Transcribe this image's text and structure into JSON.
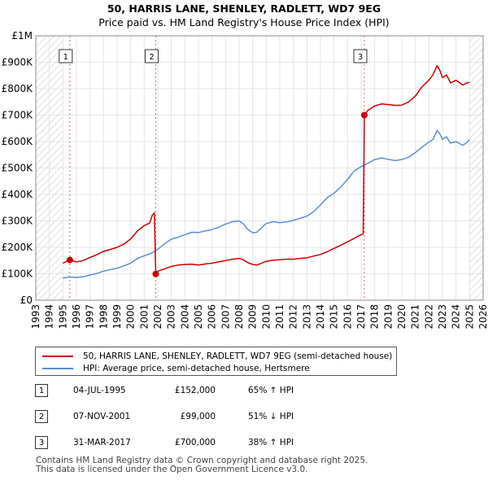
{
  "chart_data": {
    "type": "line",
    "title": "50, HARRIS LANE, SHENLEY, RADLETT, WD7 9EG",
    "subtitle": "Price paid vs. HM Land Registry's House Price Index (HPI)",
    "xlim": [
      1993,
      2026
    ],
    "ylim": [
      0,
      1000000
    ],
    "x_ticks": [
      1993,
      1994,
      1995,
      1996,
      1997,
      1998,
      1999,
      2000,
      2001,
      2002,
      2003,
      2004,
      2005,
      2006,
      2007,
      2008,
      2009,
      2010,
      2011,
      2012,
      2013,
      2014,
      2015,
      2016,
      2017,
      2018,
      2019,
      2020,
      2021,
      2022,
      2023,
      2024,
      2025,
      2026
    ],
    "y_ticks": [
      {
        "value": 0,
        "label": "£0"
      },
      {
        "value": 100000,
        "label": "£100K"
      },
      {
        "value": 200000,
        "label": "£200K"
      },
      {
        "value": 300000,
        "label": "£300K"
      },
      {
        "value": 400000,
        "label": "£400K"
      },
      {
        "value": 500000,
        "label": "£500K"
      },
      {
        "value": 600000,
        "label": "£600K"
      },
      {
        "value": 700000,
        "label": "£700K"
      },
      {
        "value": 800000,
        "label": "£800K"
      },
      {
        "value": 900000,
        "label": "£900K"
      },
      {
        "value": 1000000,
        "label": "£1M"
      }
    ],
    "hatched_ranges": [
      [
        1993,
        1995
      ],
      [
        2025,
        2026
      ]
    ],
    "series": [
      {
        "name": "50, HARRIS LANE, SHENLEY, RADLETT, WD7 9EG (semi-detached house)",
        "color": "#cc0000",
        "points": [
          [
            1995.0,
            140000
          ],
          [
            1995.51,
            152000
          ],
          [
            1996.0,
            145000
          ],
          [
            1996.5,
            150000
          ],
          [
            1997.0,
            162000
          ],
          [
            1997.5,
            172000
          ],
          [
            1998.0,
            185000
          ],
          [
            1998.5,
            192000
          ],
          [
            1999.0,
            200000
          ],
          [
            1999.5,
            212000
          ],
          [
            2000.0,
            232000
          ],
          [
            2000.5,
            262000
          ],
          [
            2001.0,
            282000
          ],
          [
            2001.4,
            292000
          ],
          [
            2001.6,
            322000
          ],
          [
            2001.75,
            330000
          ],
          [
            2001.85,
            99000
          ],
          [
            2002.0,
            110000
          ],
          [
            2002.5,
            118000
          ],
          [
            2003.0,
            128000
          ],
          [
            2003.5,
            133000
          ],
          [
            2004.0,
            135000
          ],
          [
            2004.5,
            136000
          ],
          [
            2005.0,
            133000
          ],
          [
            2005.5,
            137000
          ],
          [
            2006.0,
            140000
          ],
          [
            2006.5,
            145000
          ],
          [
            2007.0,
            150000
          ],
          [
            2007.5,
            155000
          ],
          [
            2008.0,
            158000
          ],
          [
            2008.3,
            153000
          ],
          [
            2008.6,
            143000
          ],
          [
            2009.0,
            135000
          ],
          [
            2009.3,
            133000
          ],
          [
            2009.7,
            141000
          ],
          [
            2010.0,
            147000
          ],
          [
            2010.5,
            151000
          ],
          [
            2011.0,
            153000
          ],
          [
            2011.5,
            155000
          ],
          [
            2012.0,
            155000
          ],
          [
            2012.5,
            158000
          ],
          [
            2013.0,
            160000
          ],
          [
            2013.5,
            167000
          ],
          [
            2014.0,
            173000
          ],
          [
            2014.5,
            183000
          ],
          [
            2015.0,
            196000
          ],
          [
            2015.5,
            208000
          ],
          [
            2016.0,
            221000
          ],
          [
            2016.5,
            234000
          ],
          [
            2016.9,
            246000
          ],
          [
            2017.15,
            250000
          ],
          [
            2017.24,
            700000
          ],
          [
            2017.5,
            718000
          ],
          [
            2018.0,
            735000
          ],
          [
            2018.5,
            742000
          ],
          [
            2019.0,
            740000
          ],
          [
            2019.5,
            737000
          ],
          [
            2020.0,
            738000
          ],
          [
            2020.5,
            750000
          ],
          [
            2021.0,
            772000
          ],
          [
            2021.5,
            808000
          ],
          [
            2022.0,
            832000
          ],
          [
            2022.3,
            852000
          ],
          [
            2022.6,
            887000
          ],
          [
            2022.8,
            870000
          ],
          [
            2023.0,
            842000
          ],
          [
            2023.3,
            852000
          ],
          [
            2023.6,
            822000
          ],
          [
            2024.0,
            832000
          ],
          [
            2024.5,
            814000
          ],
          [
            2024.8,
            822000
          ],
          [
            2025.0,
            824000
          ]
        ]
      },
      {
        "name": "HPI: Average price, semi-detached house, Hertsmere",
        "color": "#5a8fd0",
        "points": [
          [
            1995.0,
            84000
          ],
          [
            1995.5,
            88000
          ],
          [
            1996.0,
            86000
          ],
          [
            1996.5,
            89000
          ],
          [
            1997.0,
            95000
          ],
          [
            1997.5,
            101000
          ],
          [
            1998.0,
            110000
          ],
          [
            1998.5,
            116000
          ],
          [
            1999.0,
            121000
          ],
          [
            1999.5,
            130000
          ],
          [
            2000.0,
            140000
          ],
          [
            2000.5,
            158000
          ],
          [
            2001.0,
            168000
          ],
          [
            2001.5,
            177000
          ],
          [
            2002.0,
            193000
          ],
          [
            2002.5,
            213000
          ],
          [
            2003.0,
            231000
          ],
          [
            2003.5,
            238000
          ],
          [
            2004.0,
            248000
          ],
          [
            2004.5,
            257000
          ],
          [
            2005.0,
            256000
          ],
          [
            2005.5,
            262000
          ],
          [
            2006.0,
            267000
          ],
          [
            2006.5,
            276000
          ],
          [
            2007.0,
            288000
          ],
          [
            2007.5,
            297000
          ],
          [
            2008.0,
            300000
          ],
          [
            2008.3,
            290000
          ],
          [
            2008.6,
            270000
          ],
          [
            2009.0,
            255000
          ],
          [
            2009.3,
            257000
          ],
          [
            2009.7,
            276000
          ],
          [
            2010.0,
            290000
          ],
          [
            2010.5,
            297000
          ],
          [
            2011.0,
            293000
          ],
          [
            2011.5,
            296000
          ],
          [
            2012.0,
            302000
          ],
          [
            2012.5,
            310000
          ],
          [
            2013.0,
            318000
          ],
          [
            2013.5,
            335000
          ],
          [
            2014.0,
            360000
          ],
          [
            2014.5,
            388000
          ],
          [
            2015.0,
            405000
          ],
          [
            2015.5,
            428000
          ],
          [
            2016.0,
            457000
          ],
          [
            2016.5,
            490000
          ],
          [
            2017.0,
            505000
          ],
          [
            2017.5,
            518000
          ],
          [
            2018.0,
            532000
          ],
          [
            2018.5,
            538000
          ],
          [
            2019.0,
            533000
          ],
          [
            2019.5,
            528000
          ],
          [
            2020.0,
            532000
          ],
          [
            2020.5,
            541000
          ],
          [
            2021.0,
            558000
          ],
          [
            2021.5,
            579000
          ],
          [
            2022.0,
            598000
          ],
          [
            2022.3,
            608000
          ],
          [
            2022.6,
            642000
          ],
          [
            2022.8,
            630000
          ],
          [
            2023.0,
            608000
          ],
          [
            2023.3,
            618000
          ],
          [
            2023.6,
            594000
          ],
          [
            2024.0,
            600000
          ],
          [
            2024.5,
            586000
          ],
          [
            2024.8,
            596000
          ],
          [
            2025.0,
            608000
          ]
        ]
      }
    ],
    "sales": [
      {
        "label": "1",
        "x": 1995.51,
        "price": 152000
      },
      {
        "label": "2",
        "x": 2001.85,
        "price": 99000
      },
      {
        "label": "3",
        "x": 2017.24,
        "price": 700000
      }
    ]
  },
  "legend": {
    "property_label": "50, HARRIS LANE, SHENLEY, RADLETT, WD7 9EG (semi-detached house)",
    "hpi_label": "HPI: Average price, semi-detached house, Hertsmere",
    "property_color": "#cc0000",
    "hpi_color": "#5a8fd0"
  },
  "sales_table": [
    {
      "num": "1",
      "date": "04-JUL-1995",
      "price": "£152,000",
      "hpi": "65% ↑ HPI"
    },
    {
      "num": "2",
      "date": "07-NOV-2001",
      "price": "£99,000",
      "hpi": "51% ↓ HPI"
    },
    {
      "num": "3",
      "date": "31-MAR-2017",
      "price": "£700,000",
      "hpi": "38% ↑ HPI"
    }
  ],
  "footer": {
    "line1": "Contains HM Land Registry data © Crown copyright and database right 2025.",
    "line2": "This data is licensed under the Open Government Licence v3.0."
  }
}
